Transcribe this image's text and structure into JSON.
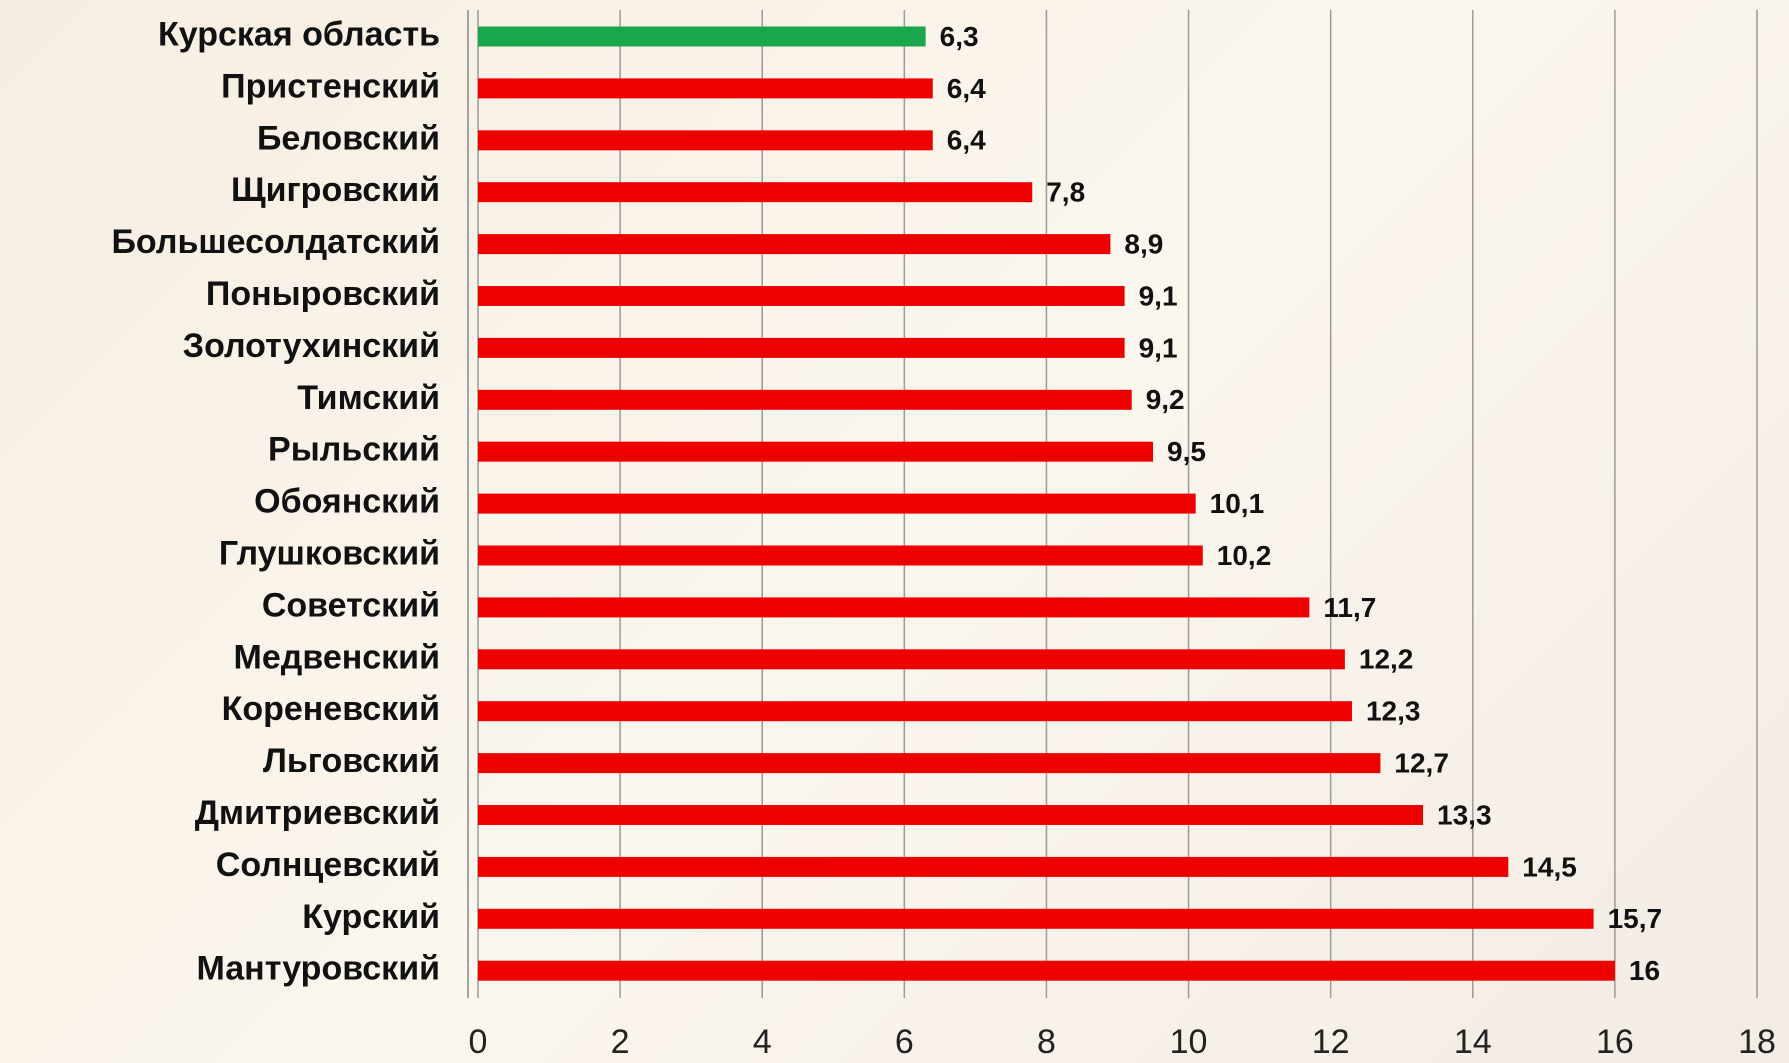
{
  "chart_data": {
    "type": "barh",
    "categories": [
      "Курская область",
      "Пристенский",
      "Беловский",
      "Щигровский",
      "Большесолдатский",
      "Поныровский",
      "Золотухинский",
      "Тимский",
      "Рыльский",
      "Обоянский",
      "Глушковский",
      "Советский",
      "Медвенский",
      "Кореневский",
      "Льговский",
      "Дмитриевский",
      "Солнцевский",
      "Курский",
      "Мантуровский"
    ],
    "values": [
      6.3,
      6.4,
      6.4,
      7.8,
      8.9,
      9.1,
      9.1,
      9.2,
      9.5,
      10.1,
      10.2,
      11.7,
      12.2,
      12.3,
      12.7,
      13.3,
      14.5,
      15.7,
      16
    ],
    "value_labels": [
      "6,3",
      "6,4",
      "6,4",
      "7,8",
      "8,9",
      "9,1",
      "9,1",
      "9,2",
      "9,5",
      "10,1",
      "10,2",
      "11,7",
      "12,2",
      "12,3",
      "12,7",
      "13,3",
      "14,5",
      "15,7",
      "16"
    ],
    "colors": [
      "#1aa64a",
      "#ee0000",
      "#ee0000",
      "#ee0000",
      "#ee0000",
      "#ee0000",
      "#ee0000",
      "#ee0000",
      "#ee0000",
      "#ee0000",
      "#ee0000",
      "#ee0000",
      "#ee0000",
      "#ee0000",
      "#ee0000",
      "#ee0000",
      "#ee0000",
      "#ee0000",
      "#ee0000"
    ],
    "xlim": [
      0,
      18
    ],
    "xticks": [
      0,
      2,
      4,
      6,
      8,
      10,
      12,
      14,
      16,
      18
    ],
    "grid": true
  }
}
